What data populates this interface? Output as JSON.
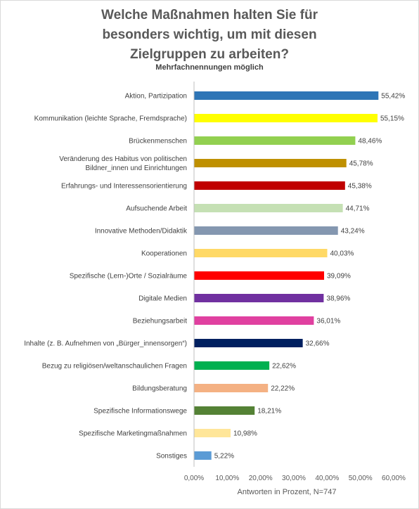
{
  "chart_data": {
    "type": "bar",
    "orientation": "horizontal",
    "title_lines": [
      "Welche Maßnahmen halten Sie für",
      "besonders wichtig, um mit diesen",
      "Zielgruppen zu arbeiten?"
    ],
    "subtitle": "Mehrfachnennungen möglich",
    "xlabel": "Antworten  in Prozent, N=747",
    "xlim": [
      0,
      60
    ],
    "xticks": [
      0,
      10,
      20,
      30,
      40,
      50,
      60
    ],
    "xtick_labels": [
      "0,00%",
      "10,00%",
      "20,00%",
      "30,00%",
      "40,00%",
      "50,00%",
      "60,00%"
    ],
    "grid": false,
    "bars": [
      {
        "label": [
          "Aktion, Partizipation"
        ],
        "value": 55.42,
        "value_label": "55,42%",
        "color": "#2e75b6"
      },
      {
        "label": [
          "Kommunikation (leichte Sprache, Fremdsprache)"
        ],
        "value": 55.15,
        "value_label": "55,15%",
        "color": "#ffff00"
      },
      {
        "label": [
          "Brückenmenschen"
        ],
        "value": 48.46,
        "value_label": "48,46%",
        "color": "#92d050"
      },
      {
        "label": [
          "Veränderung des Habitus von politischen",
          "Bildner_innen und Einrichtungen"
        ],
        "value": 45.78,
        "value_label": "45,78%",
        "color": "#bf9000"
      },
      {
        "label": [
          "Erfahrungs- und Interessensorientierung"
        ],
        "value": 45.38,
        "value_label": "45,38%",
        "color": "#c00000"
      },
      {
        "label": [
          "Aufsuchende Arbeit"
        ],
        "value": 44.71,
        "value_label": "44,71%",
        "color": "#c5e0b4"
      },
      {
        "label": [
          "Innovative Methoden/Didaktik"
        ],
        "value": 43.24,
        "value_label": "43,24%",
        "color": "#8497b0"
      },
      {
        "label": [
          "Kooperationen"
        ],
        "value": 40.03,
        "value_label": "40,03%",
        "color": "#ffd966"
      },
      {
        "label": [
          "Spezifische (Lern-)Orte / Sozialräume"
        ],
        "value": 39.09,
        "value_label": "39,09%",
        "color": "#ff0000"
      },
      {
        "label": [
          "Digitale Medien"
        ],
        "value": 38.96,
        "value_label": "38,96%",
        "color": "#7030a0"
      },
      {
        "label": [
          "Beziehungsarbeit"
        ],
        "value": 36.01,
        "value_label": "36,01%",
        "color": "#e040a0"
      },
      {
        "label": [
          "Inhalte (z. B. Aufnehmen von „Bürger_innensorgen“)"
        ],
        "value": 32.66,
        "value_label": "32,66%",
        "color": "#002060"
      },
      {
        "label": [
          "Bezug zu religiösen/weltanschaulichen Fragen"
        ],
        "value": 22.62,
        "value_label": "22,62%",
        "color": "#00b050"
      },
      {
        "label": [
          "Bildungsberatung"
        ],
        "value": 22.22,
        "value_label": "22,22%",
        "color": "#f4b183"
      },
      {
        "label": [
          "Spezifische Informationswege"
        ],
        "value": 18.21,
        "value_label": "18,21%",
        "color": "#548235"
      },
      {
        "label": [
          "Spezifische Marketingmaßnahmen"
        ],
        "value": 10.98,
        "value_label": "10,98%",
        "color": "#ffe699"
      },
      {
        "label": [
          "Sonstiges"
        ],
        "value": 5.22,
        "value_label": "5,22%",
        "color": "#5b9bd5"
      }
    ]
  }
}
